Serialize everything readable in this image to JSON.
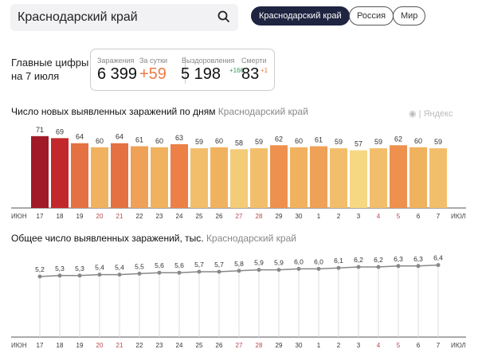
{
  "search": {
    "value": "Краснодарский край"
  },
  "filters": [
    {
      "label": "Краснодарский край",
      "active": true
    },
    {
      "label": "Россия",
      "active": false
    },
    {
      "label": "Мир",
      "active": false
    }
  ],
  "headline": {
    "line1": "Главные цифры",
    "line2": "на 7 июля"
  },
  "stats": {
    "infections_label": "Заражения",
    "infections": "6 399",
    "daily_label": "За сутки",
    "daily": "+59",
    "recovered_label": "Выздоровления",
    "recovered": "5 198",
    "recovered_delta": "+166",
    "deaths_label": "Смерти",
    "deaths": "83",
    "deaths_delta": "+1"
  },
  "watermark": "Яндекс",
  "colors": {
    "daily": "#ec7a45",
    "delta": "#2a9d5c",
    "weekend": "#b5484d"
  },
  "chart_data": [
    {
      "type": "bar",
      "title": "Число новых выявленных заражений по дням",
      "subtitle": "Краснодарский край",
      "categories": [
        "17",
        "18",
        "19",
        "20",
        "21",
        "22",
        "23",
        "24",
        "25",
        "26",
        "27",
        "28",
        "29",
        "30",
        "1",
        "2",
        "3",
        "4",
        "5",
        "6",
        "7"
      ],
      "weekend": [
        "20",
        "21",
        "27",
        "28",
        "4",
        "5"
      ],
      "values": [
        71,
        69,
        64,
        60,
        64,
        61,
        60,
        63,
        59,
        60,
        58,
        59,
        62,
        60,
        61,
        59,
        57,
        59,
        62,
        60,
        59
      ],
      "x_start_label": "ИЮН",
      "x_end_label": "ИЮЛ"
    },
    {
      "type": "line",
      "title": "Общее число выявленных заражений, тыс.",
      "subtitle": "Краснодарский край",
      "categories": [
        "17",
        "18",
        "19",
        "20",
        "21",
        "22",
        "23",
        "24",
        "25",
        "26",
        "27",
        "28",
        "29",
        "30",
        "1",
        "2",
        "3",
        "4",
        "5",
        "6",
        "7"
      ],
      "weekend": [
        "20",
        "21",
        "27",
        "28",
        "4",
        "5"
      ],
      "values": [
        5.2,
        5.3,
        5.3,
        5.4,
        5.4,
        5.5,
        5.6,
        5.6,
        5.7,
        5.7,
        5.8,
        5.9,
        5.9,
        6.0,
        6.0,
        6.1,
        6.2,
        6.2,
        6.3,
        6.3,
        6.4
      ],
      "x_start_label": "ИЮН",
      "x_end_label": "ИЮЛ"
    }
  ]
}
